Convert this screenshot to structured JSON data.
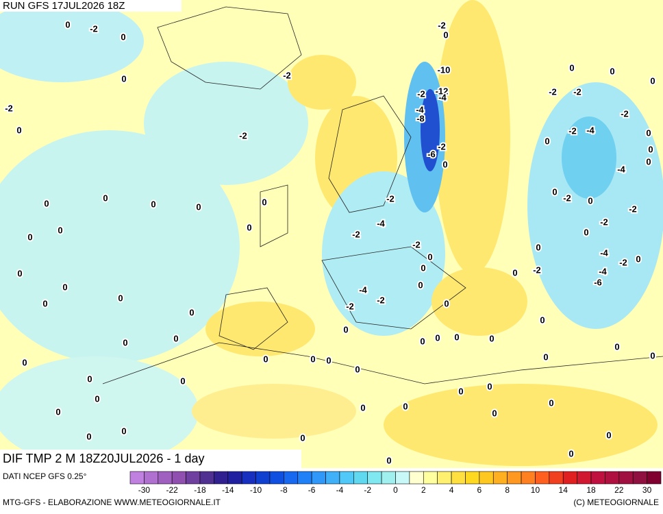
{
  "header": {
    "run": "RUN GFS 17JUL2026 18Z",
    "product": "DIF TMP 2 M 18Z20JUL2026 - 1 day"
  },
  "map_labels": [
    "0",
    "-2",
    "0",
    "0",
    "-2",
    "0",
    "-2",
    "-2",
    "0",
    "0",
    "0",
    "0",
    "0",
    "0",
    "0",
    "0",
    "0",
    "0",
    "0",
    "0",
    "0",
    "0",
    "0",
    "0",
    "0",
    "0",
    "0",
    "0",
    "0",
    "0",
    "0",
    "0",
    "0",
    "0",
    "0",
    "0",
    "0",
    "0",
    "0",
    "0",
    "0",
    "0",
    "0",
    "0",
    "0",
    "0",
    "0",
    "0",
    "0",
    "0",
    "0",
    "0",
    "0",
    "0",
    "0",
    "0",
    "0",
    "0",
    "0",
    "0",
    "0",
    "0",
    "0",
    "0",
    "0",
    "0",
    "0",
    "0",
    "0",
    "0",
    "-2",
    "0",
    "-10",
    "-12",
    "-2",
    "-4",
    "-4",
    "-8",
    "-2",
    "-6",
    "0",
    "-2",
    "-4",
    "-2",
    "-2",
    "-4",
    "-2",
    "-2",
    "-2",
    "-2",
    "-2",
    "-2",
    "-4",
    "-4",
    "-2",
    "-2",
    "-2",
    "-4",
    "-2",
    "-4",
    "-6",
    "-2"
  ],
  "legend": {
    "source": "DATI NCEP GFS 0.25°",
    "colors": [
      "#c080e0",
      "#b070d0",
      "#a060c0",
      "#9050b0",
      "#7040a0",
      "#503090",
      "#302090",
      "#2020a0",
      "#1830c0",
      "#1040d0",
      "#1050e0",
      "#1868f0",
      "#2080f8",
      "#3098f8",
      "#40b0f8",
      "#50c8f8",
      "#60d8f0",
      "#80e8f0",
      "#a0f0f0",
      "#c8f8f8",
      "#ffffd0",
      "#ffffa0",
      "#fff070",
      "#ffe040",
      "#ffd820",
      "#ffc820",
      "#ffb020",
      "#ff9820",
      "#ff8020",
      "#ff6020",
      "#f04020",
      "#e02020",
      "#d01830",
      "#c01040",
      "#b01040",
      "#a01040",
      "#901040",
      "#800030"
    ],
    "ticks": [
      "-30",
      "-22",
      "-18",
      "-14",
      "-10",
      "-8",
      "-6",
      "-4",
      "-2",
      "0",
      "2",
      "4",
      "6",
      "8",
      "10",
      "14",
      "18",
      "22",
      "30"
    ]
  },
  "footer": {
    "left": "MTG-GFS - ELABORAZIONE WWW.METEOGIORNALE.IT",
    "right": "(C) METEOGIORNALE"
  }
}
